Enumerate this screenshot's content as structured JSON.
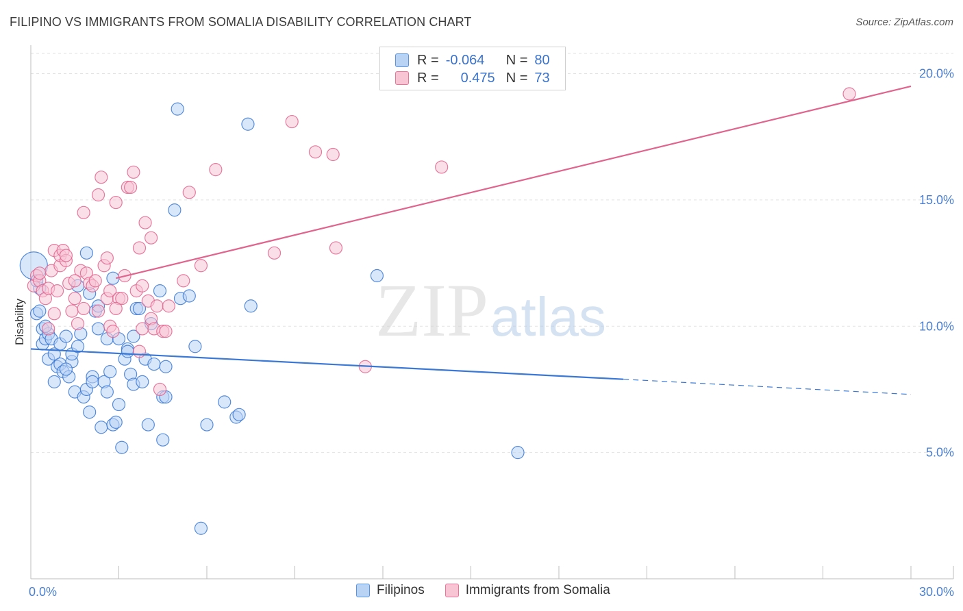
{
  "title": "FILIPINO VS IMMIGRANTS FROM SOMALIA DISABILITY CORRELATION CHART",
  "source": "Source: ZipAtlas.com",
  "watermark": {
    "zip": "ZIP",
    "atlas": "atlas"
  },
  "legend": {
    "rows": [
      {
        "r_label": "R =",
        "r_value": "-0.064",
        "n_label": "N =",
        "n_value": "80",
        "color": "#5b93e0",
        "fill": "#b9d3f5"
      },
      {
        "r_label": "R =",
        "r_value": "0.475",
        "n_label": "N =",
        "n_value": "73",
        "color": "#e8749a",
        "fill": "#f8c5d5"
      }
    ]
  },
  "bottom_legend": {
    "series1": "Filipinos",
    "series2": "Immigrants from Somalia"
  },
  "chart_data": {
    "type": "scatter",
    "title": "FILIPINO VS IMMIGRANTS FROM SOMALIA DISABILITY CORRELATION CHART",
    "xlabel": "",
    "ylabel": "Disability",
    "xlim": [
      0,
      30
    ],
    "ylim": [
      0,
      20.8
    ],
    "x_tick_labels": [
      {
        "value": 0,
        "label": "0.0%"
      },
      {
        "value": 30,
        "label": "30.0%"
      }
    ],
    "y_tick_labels": [
      {
        "value": 5,
        "label": "5.0%"
      },
      {
        "value": 10,
        "label": "10.0%"
      },
      {
        "value": 15,
        "label": "15.0%"
      },
      {
        "value": 20,
        "label": "20.0%"
      }
    ],
    "series": [
      {
        "name": "Filipinos",
        "color": "#3a78d4",
        "fill": "#b9d3f5",
        "trend": {
          "x0": 0,
          "y0": 9.1,
          "x1": 20.2,
          "y1": 7.9,
          "dash_to_x": 30,
          "dash_to_y": 7.3
        },
        "points": [
          [
            0.1,
            12.4
          ],
          [
            0.2,
            10.5
          ],
          [
            0.3,
            10.6
          ],
          [
            0.3,
            11.5
          ],
          [
            0.4,
            9.9
          ],
          [
            0.4,
            9.3
          ],
          [
            0.5,
            9.5
          ],
          [
            0.6,
            9.7
          ],
          [
            0.6,
            8.7
          ],
          [
            0.7,
            9.5
          ],
          [
            0.8,
            8.9
          ],
          [
            0.8,
            7.8
          ],
          [
            0.9,
            8.4
          ],
          [
            1.0,
            8.5
          ],
          [
            1.0,
            9.3
          ],
          [
            1.1,
            8.2
          ],
          [
            1.2,
            9.6
          ],
          [
            1.3,
            8.0
          ],
          [
            1.4,
            8.6
          ],
          [
            1.4,
            8.9
          ],
          [
            1.5,
            7.4
          ],
          [
            1.6,
            11.6
          ],
          [
            1.6,
            9.2
          ],
          [
            1.7,
            9.7
          ],
          [
            1.8,
            7.2
          ],
          [
            1.9,
            7.5
          ],
          [
            1.9,
            12.9
          ],
          [
            2.0,
            6.6
          ],
          [
            2.1,
            8.0
          ],
          [
            2.1,
            7.8
          ],
          [
            2.2,
            10.6
          ],
          [
            2.3,
            9.9
          ],
          [
            2.3,
            10.8
          ],
          [
            2.4,
            6.0
          ],
          [
            2.5,
            7.8
          ],
          [
            2.6,
            7.4
          ],
          [
            2.6,
            9.5
          ],
          [
            2.7,
            8.2
          ],
          [
            2.8,
            11.9
          ],
          [
            2.8,
            6.1
          ],
          [
            2.9,
            6.2
          ],
          [
            3.0,
            9.5
          ],
          [
            3.0,
            6.9
          ],
          [
            3.1,
            5.2
          ],
          [
            3.2,
            8.7
          ],
          [
            3.3,
            9.1
          ],
          [
            3.3,
            9.0
          ],
          [
            3.4,
            8.1
          ],
          [
            3.5,
            7.7
          ],
          [
            3.6,
            10.7
          ],
          [
            3.7,
            10.7
          ],
          [
            3.8,
            7.8
          ],
          [
            3.9,
            8.7
          ],
          [
            4.0,
            6.1
          ],
          [
            4.2,
            8.5
          ],
          [
            4.4,
            11.4
          ],
          [
            4.5,
            5.5
          ],
          [
            4.5,
            7.2
          ],
          [
            4.6,
            7.2
          ],
          [
            4.6,
            8.4
          ],
          [
            4.9,
            14.6
          ],
          [
            5.0,
            18.6
          ],
          [
            5.1,
            11.1
          ],
          [
            5.4,
            11.2
          ],
          [
            5.6,
            9.2
          ],
          [
            5.8,
            2.0
          ],
          [
            6.0,
            6.1
          ],
          [
            6.6,
            7.0
          ],
          [
            7.0,
            6.4
          ],
          [
            7.1,
            6.5
          ],
          [
            7.4,
            18.0
          ],
          [
            7.5,
            10.8
          ],
          [
            11.8,
            12.0
          ],
          [
            16.6,
            5.0
          ],
          [
            0.2,
            11.8
          ],
          [
            0.5,
            10.0
          ],
          [
            1.2,
            8.3
          ],
          [
            2.0,
            11.3
          ],
          [
            3.5,
            9.6
          ],
          [
            4.1,
            10.1
          ]
        ]
      },
      {
        "name": "Immigrants from Somalia",
        "color": "#e0648e",
        "fill": "#f8c5d5",
        "trend": {
          "x0": 2.9,
          "y0": 11.9,
          "x1": 30,
          "y1": 19.5
        },
        "points": [
          [
            0.1,
            11.6
          ],
          [
            0.2,
            12.0
          ],
          [
            0.3,
            11.8
          ],
          [
            0.3,
            12.1
          ],
          [
            0.4,
            11.4
          ],
          [
            0.5,
            11.1
          ],
          [
            0.6,
            11.5
          ],
          [
            0.7,
            12.2
          ],
          [
            0.8,
            13.0
          ],
          [
            0.8,
            10.5
          ],
          [
            0.9,
            11.4
          ],
          [
            1.0,
            12.4
          ],
          [
            1.0,
            12.8
          ],
          [
            1.1,
            13.0
          ],
          [
            1.2,
            12.6
          ],
          [
            1.2,
            12.8
          ],
          [
            1.3,
            11.7
          ],
          [
            1.4,
            10.6
          ],
          [
            1.5,
            11.1
          ],
          [
            1.6,
            10.1
          ],
          [
            1.7,
            12.2
          ],
          [
            1.8,
            14.5
          ],
          [
            1.8,
            10.7
          ],
          [
            1.9,
            12.1
          ],
          [
            2.0,
            11.7
          ],
          [
            2.1,
            11.6
          ],
          [
            2.2,
            11.8
          ],
          [
            2.3,
            10.6
          ],
          [
            2.3,
            15.2
          ],
          [
            2.4,
            15.9
          ],
          [
            2.5,
            12.4
          ],
          [
            2.6,
            11.1
          ],
          [
            2.6,
            12.7
          ],
          [
            2.7,
            10.0
          ],
          [
            2.7,
            11.4
          ],
          [
            2.8,
            9.8
          ],
          [
            2.9,
            14.9
          ],
          [
            3.0,
            11.1
          ],
          [
            3.1,
            11.1
          ],
          [
            3.2,
            12.0
          ],
          [
            3.3,
            15.5
          ],
          [
            3.4,
            15.5
          ],
          [
            3.5,
            16.1
          ],
          [
            3.6,
            11.4
          ],
          [
            3.7,
            13.1
          ],
          [
            3.7,
            9.0
          ],
          [
            3.8,
            9.9
          ],
          [
            3.8,
            11.6
          ],
          [
            3.9,
            14.1
          ],
          [
            4.0,
            11.0
          ],
          [
            4.1,
            10.3
          ],
          [
            4.1,
            13.5
          ],
          [
            4.2,
            9.9
          ],
          [
            4.3,
            10.8
          ],
          [
            4.4,
            7.5
          ],
          [
            4.5,
            9.8
          ],
          [
            4.6,
            9.8
          ],
          [
            4.7,
            10.8
          ],
          [
            5.2,
            11.8
          ],
          [
            5.4,
            15.3
          ],
          [
            5.8,
            12.4
          ],
          [
            6.3,
            16.2
          ],
          [
            8.3,
            12.9
          ],
          [
            8.9,
            18.1
          ],
          [
            9.7,
            16.9
          ],
          [
            10.3,
            16.8
          ],
          [
            10.4,
            13.1
          ],
          [
            11.4,
            8.4
          ],
          [
            14.0,
            16.3
          ],
          [
            27.9,
            19.2
          ],
          [
            1.5,
            11.8
          ],
          [
            2.9,
            10.7
          ],
          [
            0.6,
            9.9
          ]
        ]
      }
    ]
  }
}
